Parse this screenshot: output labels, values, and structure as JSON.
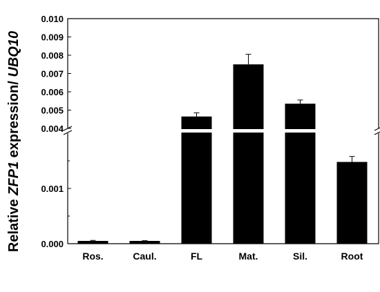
{
  "chart_data": {
    "type": "bar",
    "ylabel": [
      "Relative ",
      "ZFP1",
      " expression/ ",
      "UBQ10"
    ],
    "categories": [
      "Ros.",
      "Caul.",
      "FL",
      "Mat.",
      "Sil.",
      "Root"
    ],
    "values": [
      5e-05,
      5e-05,
      0.00465,
      0.0075,
      0.00535,
      0.00148
    ],
    "errors": [
      1e-05,
      5e-06,
      0.0002,
      0.00055,
      0.0002,
      0.0001
    ],
    "color": "#000000",
    "ylim": [
      0,
      0.01
    ],
    "ybreak": [
      0.002,
      0.004
    ],
    "yticks": [
      {
        "value": 0,
        "label": "0.000"
      },
      {
        "value": 0.001,
        "label": "0.001"
      },
      {
        "value": 0.004,
        "label": "0.004"
      },
      {
        "value": 0.005,
        "label": "0.005"
      },
      {
        "value": 0.006,
        "label": "0.006"
      },
      {
        "value": 0.007,
        "label": "0.007"
      },
      {
        "value": 0.008,
        "label": "0.008"
      },
      {
        "value": 0.009,
        "label": "0.009"
      },
      {
        "value": 0.01,
        "label": "0.010"
      }
    ],
    "yminor": [
      0.0005,
      0.0015
    ]
  }
}
